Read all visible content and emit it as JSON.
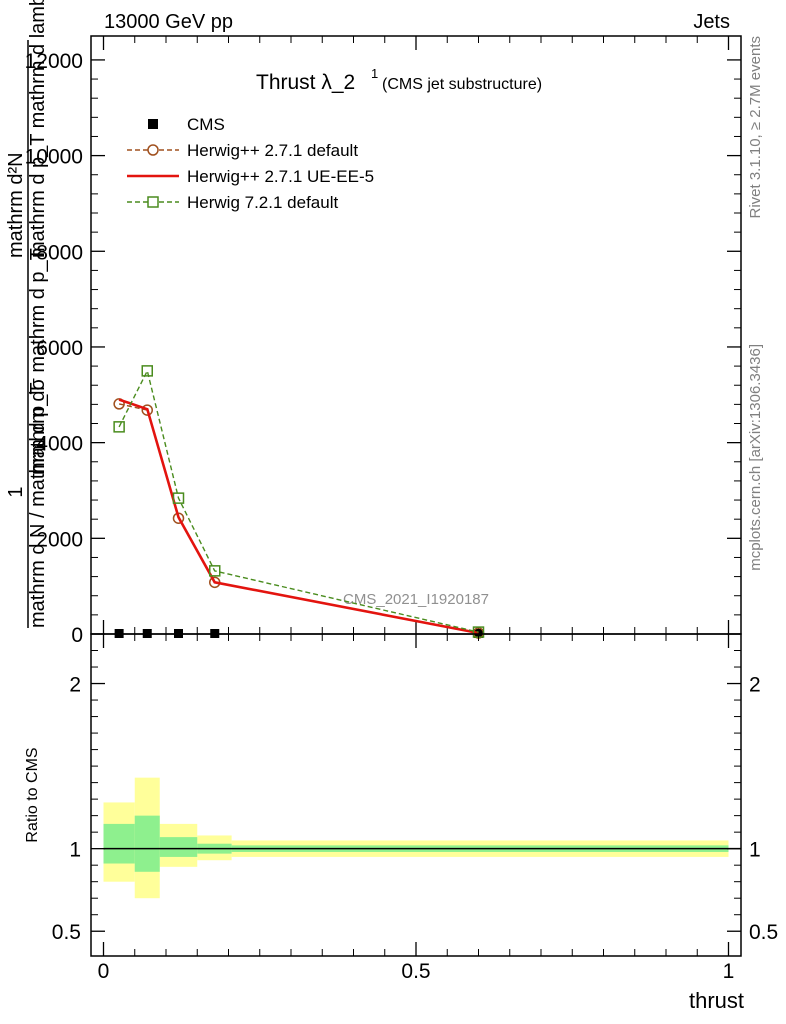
{
  "header": {
    "left": "13000 GeV pp",
    "right": "Jets"
  },
  "side_labels": {
    "rivet": "Rivet 3.1.10, ≥ 2.7M events",
    "mcplots": "mcplots.cern.ch [arXiv:1306.3436]"
  },
  "watermark": "CMS_2021_I1920187",
  "chart_data": [
    {
      "panel": "main",
      "type": "line",
      "title_main": "Thrust λ_2",
      "title_sup": "1",
      "title_sub": "(CMS jet substructure)",
      "ylabel_top_line1": "mathrm d²N",
      "ylabel_top_line2": "mathrm d p_T mathrm d lambda",
      "ylabel_top_line3": "mathrm dσ mathrm d p_T",
      "ylabel_top_line3b": "",
      "ylabel_one": "1",
      "ylabel_bottom": "mathrm d N / mathrm d p_T",
      "xlim": [
        -0.02,
        1.02
      ],
      "ylim": [
        0,
        12500
      ],
      "yticks": [
        {
          "value": 0,
          "label": "0"
        },
        {
          "value": 2000,
          "label": "2000"
        },
        {
          "value": 4000,
          "label": "4000"
        },
        {
          "value": 6000,
          "label": "6000"
        },
        {
          "value": 8000,
          "label": "8000"
        },
        {
          "value": 10000,
          "label": "10000"
        },
        {
          "value": 12000,
          "label": "12000"
        }
      ],
      "legend": {
        "placement": "top-left",
        "entries": [
          {
            "label": "CMS",
            "color": "#000000",
            "style": "square-filled"
          },
          {
            "label": "Herwig++ 2.7.1 default",
            "color": "#a0501e",
            "style": "dashed-circle"
          },
          {
            "label": "Herwig++ 2.7.1 UE-EE-5",
            "color": "#e3140f",
            "style": "solid"
          },
          {
            "label": "Herwig 7.2.1 default",
            "color": "#4a8c1e",
            "style": "dashed-square"
          }
        ]
      },
      "series": [
        {
          "name": "CMS",
          "color": "#000000",
          "x": [
            0.025,
            0.07,
            0.12,
            0.178,
            0.6
          ],
          "y": [
            0,
            0,
            0,
            0,
            0
          ]
        },
        {
          "name": "Herwig++ 2.7.1 default",
          "color": "#a0501e",
          "x": [
            0.025,
            0.07,
            0.12,
            0.178,
            0.6
          ],
          "y": [
            4810,
            4680,
            2420,
            1080,
            20
          ]
        },
        {
          "name": "Herwig++ 2.7.1 UE-EE-5",
          "color": "#e3140f",
          "x": [
            0.025,
            0.07,
            0.12,
            0.178,
            0.6
          ],
          "y": [
            4900,
            4700,
            2440,
            1080,
            20
          ]
        },
        {
          "name": "Herwig 7.2.1 default",
          "color": "#4a8c1e",
          "x": [
            0.025,
            0.07,
            0.12,
            0.178,
            0.6
          ],
          "y": [
            4330,
            5500,
            2840,
            1320,
            40
          ]
        }
      ]
    },
    {
      "panel": "ratio",
      "type": "area",
      "ylabel": "Ratio to CMS",
      "xlabel": "thrust",
      "xlim": [
        -0.02,
        1.02
      ],
      "ylim": [
        0.35,
        2.3
      ],
      "yticks": [
        {
          "value": 0.5,
          "label": "0.5"
        },
        {
          "value": 1,
          "label": "1"
        },
        {
          "value": 2,
          "label": "2"
        }
      ],
      "xticks": [
        {
          "value": 0,
          "label": "0"
        },
        {
          "value": 0.5,
          "label": "0.5"
        },
        {
          "value": 1,
          "label": "1"
        }
      ],
      "bands": {
        "outer_color": "#ffff9a",
        "inner_color": "#8ef08e",
        "bins": [
          {
            "x0": 0.0,
            "x1": 0.05,
            "outer_lo": 0.8,
            "outer_hi": 1.28,
            "inner_lo": 0.91,
            "inner_hi": 1.15
          },
          {
            "x0": 0.05,
            "x1": 0.09,
            "outer_lo": 0.7,
            "outer_hi": 1.43,
            "inner_lo": 0.86,
            "inner_hi": 1.2
          },
          {
            "x0": 0.09,
            "x1": 0.15,
            "outer_lo": 0.89,
            "outer_hi": 1.15,
            "inner_lo": 0.95,
            "inner_hi": 1.07
          },
          {
            "x0": 0.15,
            "x1": 0.205,
            "outer_lo": 0.93,
            "outer_hi": 1.08,
            "inner_lo": 0.97,
            "inner_hi": 1.03
          },
          {
            "x0": 0.205,
            "x1": 1.0,
            "outer_lo": 0.95,
            "outer_hi": 1.05,
            "inner_lo": 0.98,
            "inner_hi": 1.02
          }
        ]
      },
      "reference_line": 1
    }
  ]
}
